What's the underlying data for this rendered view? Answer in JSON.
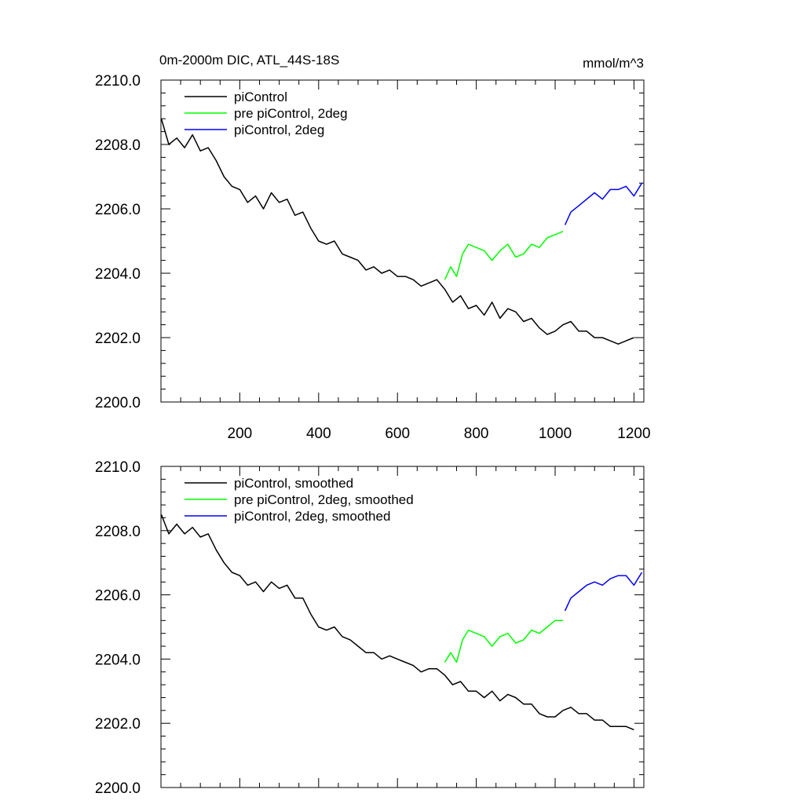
{
  "chart_data": [
    {
      "type": "line",
      "title": "0m-2000m DIC, ATL_44S-18S",
      "units": "mmol/m^3",
      "xlim": [
        0,
        1225
      ],
      "ylim": [
        2200,
        2210
      ],
      "xticks": [
        200,
        400,
        600,
        800,
        1000,
        1200
      ],
      "xtick_labels": [
        "200",
        "400",
        "600",
        "800",
        "1000",
        "1200"
      ],
      "yticks": [
        2200,
        2202,
        2204,
        2206,
        2208,
        2210
      ],
      "ytick_labels": [
        "2200.0",
        "2202.0",
        "2204.0",
        "2206.0",
        "2208.0",
        "2210.0"
      ],
      "grid": false,
      "legend": "top-left",
      "series": [
        {
          "name": "piControl",
          "color": "#000000",
          "x": [
            1,
            20,
            40,
            60,
            80,
            100,
            120,
            140,
            160,
            180,
            200,
            220,
            240,
            260,
            280,
            300,
            320,
            340,
            360,
            380,
            400,
            420,
            440,
            460,
            480,
            500,
            520,
            540,
            560,
            580,
            600,
            620,
            640,
            660,
            680,
            700,
            720,
            740,
            760,
            780,
            800,
            820,
            840,
            860,
            880,
            900,
            920,
            940,
            960,
            980,
            1000,
            1020,
            1040,
            1060,
            1080,
            1100,
            1120,
            1140,
            1160,
            1180,
            1200
          ],
          "y": [
            2208.8,
            2208.0,
            2208.2,
            2207.9,
            2208.3,
            2207.8,
            2207.9,
            2207.5,
            2207.0,
            2206.7,
            2206.6,
            2206.2,
            2206.4,
            2206.0,
            2206.5,
            2206.2,
            2206.3,
            2205.8,
            2205.9,
            2205.4,
            2205.0,
            2204.9,
            2205.0,
            2204.6,
            2204.5,
            2204.4,
            2204.1,
            2204.2,
            2204.0,
            2204.1,
            2203.9,
            2203.9,
            2203.8,
            2203.6,
            2203.7,
            2203.8,
            2203.5,
            2203.1,
            2203.3,
            2202.9,
            2203.0,
            2202.7,
            2203.1,
            2202.6,
            2202.9,
            2202.8,
            2202.5,
            2202.6,
            2202.3,
            2202.1,
            2202.2,
            2202.4,
            2202.5,
            2202.2,
            2202.2,
            2202.0,
            2202.0,
            2201.9,
            2201.8,
            2201.9,
            2202.0
          ]
        },
        {
          "name": "pre piControl, 2deg",
          "color": "#00ff00",
          "x": [
            720,
            735,
            750,
            765,
            780,
            800,
            820,
            840,
            860,
            880,
            900,
            920,
            940,
            960,
            980,
            1000,
            1020
          ],
          "y": [
            2203.8,
            2204.2,
            2203.9,
            2204.6,
            2204.9,
            2204.8,
            2204.7,
            2204.4,
            2204.7,
            2204.9,
            2204.5,
            2204.6,
            2204.9,
            2204.8,
            2205.1,
            2205.2,
            2205.3
          ]
        },
        {
          "name": "piControl, 2deg",
          "color": "#0000ff",
          "x": [
            1025,
            1040,
            1060,
            1080,
            1100,
            1120,
            1140,
            1160,
            1180,
            1200,
            1220
          ],
          "y": [
            2205.5,
            2205.9,
            2206.1,
            2206.3,
            2206.5,
            2206.3,
            2206.6,
            2206.6,
            2206.7,
            2206.4,
            2206.8
          ]
        }
      ]
    },
    {
      "type": "line",
      "xlim": [
        0,
        1225
      ],
      "ylim": [
        2200,
        2210
      ],
      "xticks": [
        200,
        400,
        600,
        800,
        1000,
        1200
      ],
      "yticks": [
        2200,
        2202,
        2204,
        2206,
        2208,
        2210
      ],
      "ytick_labels": [
        "2200.0",
        "2202.0",
        "2204.0",
        "2206.0",
        "2208.0",
        "2210.0"
      ],
      "grid": false,
      "legend": "top-left",
      "series": [
        {
          "name": "piControl, smoothed",
          "color": "#000000",
          "x": [
            1,
            20,
            40,
            60,
            80,
            100,
            120,
            140,
            160,
            180,
            200,
            220,
            240,
            260,
            280,
            300,
            320,
            340,
            360,
            380,
            400,
            420,
            440,
            460,
            480,
            500,
            520,
            540,
            560,
            580,
            600,
            620,
            640,
            660,
            680,
            700,
            720,
            740,
            760,
            780,
            800,
            820,
            840,
            860,
            880,
            900,
            920,
            940,
            960,
            980,
            1000,
            1020,
            1040,
            1060,
            1080,
            1100,
            1120,
            1140,
            1160,
            1180,
            1200
          ],
          "y": [
            2208.5,
            2207.9,
            2208.2,
            2207.9,
            2208.1,
            2207.8,
            2207.9,
            2207.4,
            2207.0,
            2206.7,
            2206.6,
            2206.3,
            2206.4,
            2206.1,
            2206.4,
            2206.2,
            2206.3,
            2205.9,
            2205.9,
            2205.4,
            2205.0,
            2204.9,
            2205.0,
            2204.7,
            2204.6,
            2204.4,
            2204.2,
            2204.2,
            2204.0,
            2204.1,
            2204.0,
            2203.9,
            2203.8,
            2203.6,
            2203.7,
            2203.7,
            2203.5,
            2203.2,
            2203.3,
            2203.0,
            2203.0,
            2202.8,
            2203.0,
            2202.7,
            2202.9,
            2202.8,
            2202.6,
            2202.6,
            2202.3,
            2202.2,
            2202.2,
            2202.4,
            2202.5,
            2202.3,
            2202.3,
            2202.1,
            2202.1,
            2201.9,
            2201.9,
            2201.9,
            2201.8
          ]
        },
        {
          "name": "pre piControl, 2deg, smoothed",
          "color": "#00ff00",
          "x": [
            720,
            735,
            750,
            765,
            780,
            800,
            820,
            840,
            860,
            880,
            900,
            920,
            940,
            960,
            980,
            1000,
            1020
          ],
          "y": [
            2203.9,
            2204.2,
            2203.9,
            2204.6,
            2204.9,
            2204.8,
            2204.7,
            2204.4,
            2204.7,
            2204.8,
            2204.5,
            2204.6,
            2204.9,
            2204.8,
            2205.0,
            2205.2,
            2205.2
          ]
        },
        {
          "name": "piControl, 2deg, smoothed",
          "color": "#0000ff",
          "x": [
            1025,
            1040,
            1060,
            1080,
            1100,
            1120,
            1140,
            1160,
            1180,
            1200,
            1220
          ],
          "y": [
            2205.5,
            2205.9,
            2206.1,
            2206.3,
            2206.4,
            2206.3,
            2206.5,
            2206.6,
            2206.6,
            2206.3,
            2206.7
          ]
        }
      ]
    }
  ]
}
